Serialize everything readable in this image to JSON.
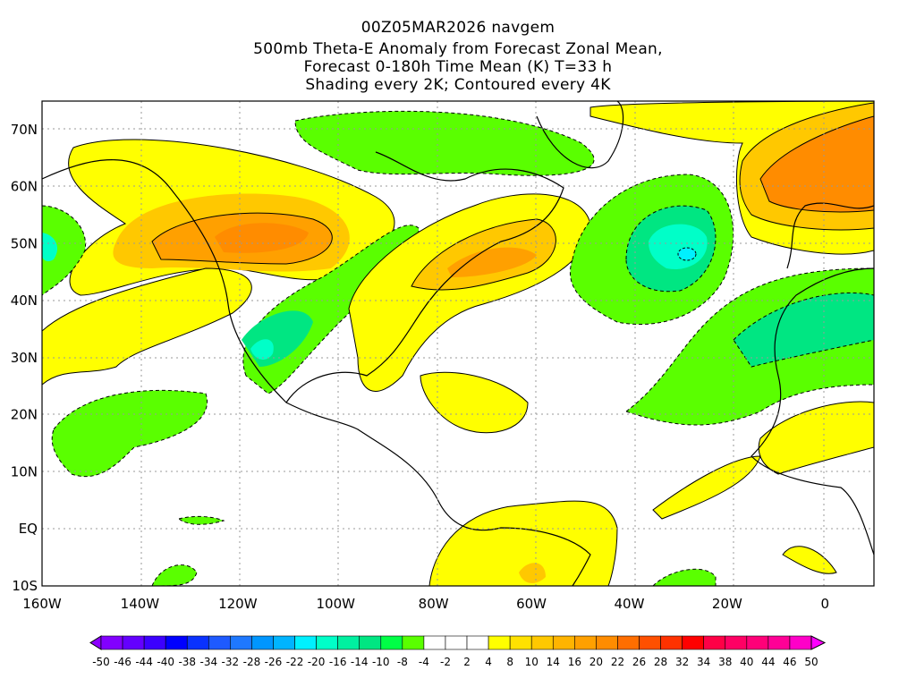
{
  "title": {
    "line1": "00Z05MAR2026 navgem",
    "line2": "500mb Theta-E Anomaly from Forecast Zonal Mean,",
    "line3": "Forecast 0-180h Time Mean (K) T=33 h",
    "line4": "Shading every 2K; Contoured every 4K"
  },
  "chart_data": {
    "type": "heatmap",
    "title": "500mb Theta-E Anomaly from Forecast Zonal Mean, Forecast 0-180h Time Mean (K) T=33 h",
    "model": "navgem",
    "init": "00Z05MAR2026",
    "units": "K",
    "shading_interval": 2,
    "contour_interval": 4,
    "x_ticks": [
      "160W",
      "140W",
      "120W",
      "100W",
      "80W",
      "60W",
      "40W",
      "20W",
      "0"
    ],
    "y_ticks": [
      "70N",
      "60N",
      "50N",
      "40N",
      "30N",
      "20N",
      "10N",
      "EQ",
      "10S"
    ],
    "xlim": [
      -160,
      10
    ],
    "ylim": [
      -10,
      75
    ],
    "grid": true,
    "colorbar": {
      "labels": [
        "-50",
        "-46",
        "-44",
        "-40",
        "-38",
        "-34",
        "-32",
        "-28",
        "-26",
        "-22",
        "-20",
        "-16",
        "-14",
        "-10",
        "-8",
        "-4",
        "-2",
        "2",
        "4",
        "8",
        "10",
        "14",
        "16",
        "20",
        "22",
        "26",
        "28",
        "32",
        "34",
        "38",
        "40",
        "44",
        "46",
        "50"
      ],
      "colors": [
        "#8200ff",
        "#6400ff",
        "#3c00ff",
        "#0000ff",
        "#0a32ff",
        "#1e5aff",
        "#1e78ff",
        "#0096ff",
        "#00b4ff",
        "#00f0ff",
        "#00ffc8",
        "#00f0a0",
        "#00e682",
        "#00ff46",
        "#5aff00",
        "#ffffff",
        "#ffffff",
        "#ffffff",
        "#ffff00",
        "#ffe100",
        "#ffc800",
        "#ffb400",
        "#ffa000",
        "#ff8c00",
        "#ff6e00",
        "#ff5000",
        "#ff3200",
        "#ff0000",
        "#ff0046",
        "#ff0064",
        "#ff0078",
        "#ff0096",
        "#ff00c8"
      ],
      "under_color": "#8c00ff",
      "over_color": "#ff00ff"
    },
    "features": [
      {
        "name": "NE Pacific / Western Canada warm anomaly",
        "max_approx": 14
      },
      {
        "name": "Eastern Canada warm anomaly",
        "max_approx": 12
      },
      {
        "name": "Western Europe / Scandinavia warm anomaly",
        "max_approx": 16
      },
      {
        "name": "Central North Atlantic cold anomaly",
        "min_approx": -16
      },
      {
        "name": "Texas / Gulf cold anomaly",
        "min_approx": -12
      },
      {
        "name": "Subtropical Atlantic cold anomaly band",
        "min_approx": -12
      }
    ]
  }
}
